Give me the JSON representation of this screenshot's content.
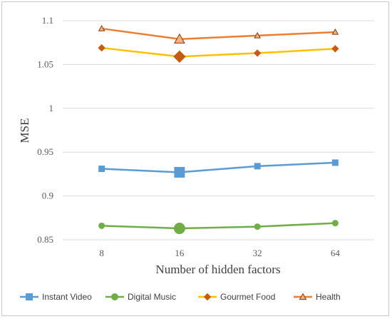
{
  "chart_data": {
    "type": "line",
    "title": "",
    "xlabel": "Number of hidden factors",
    "ylabel": "MSE",
    "categories": [
      "8",
      "16",
      "32",
      "64"
    ],
    "ylim": [
      0.85,
      1.1
    ],
    "yticks": [
      0.85,
      0.9,
      0.95,
      1.0,
      1.05,
      1.1
    ],
    "ytick_labels": [
      "0.85",
      "0.9",
      "0.95",
      "1",
      "1.05",
      "1.1"
    ],
    "grid": true,
    "legend_position": "bottom",
    "highlight_index": 1,
    "series": [
      {
        "name": "Instant Video",
        "values": [
          0.931,
          0.927,
          0.934,
          0.938
        ],
        "color": "#5b9bd5",
        "marker": "square"
      },
      {
        "name": "Digital Music",
        "values": [
          0.866,
          0.863,
          0.865,
          0.869
        ],
        "color": "#70ad47",
        "marker": "circle"
      },
      {
        "name": "Gourmet Food",
        "values": [
          1.069,
          1.059,
          1.063,
          1.068
        ],
        "color": "#ffc000",
        "marker": "diamond",
        "marker_color": "#c55a11"
      },
      {
        "name": "Health",
        "values": [
          1.091,
          1.079,
          1.083,
          1.087
        ],
        "color": "#ed7d31",
        "marker": "triangle",
        "marker_color": "#c55a11"
      }
    ]
  }
}
